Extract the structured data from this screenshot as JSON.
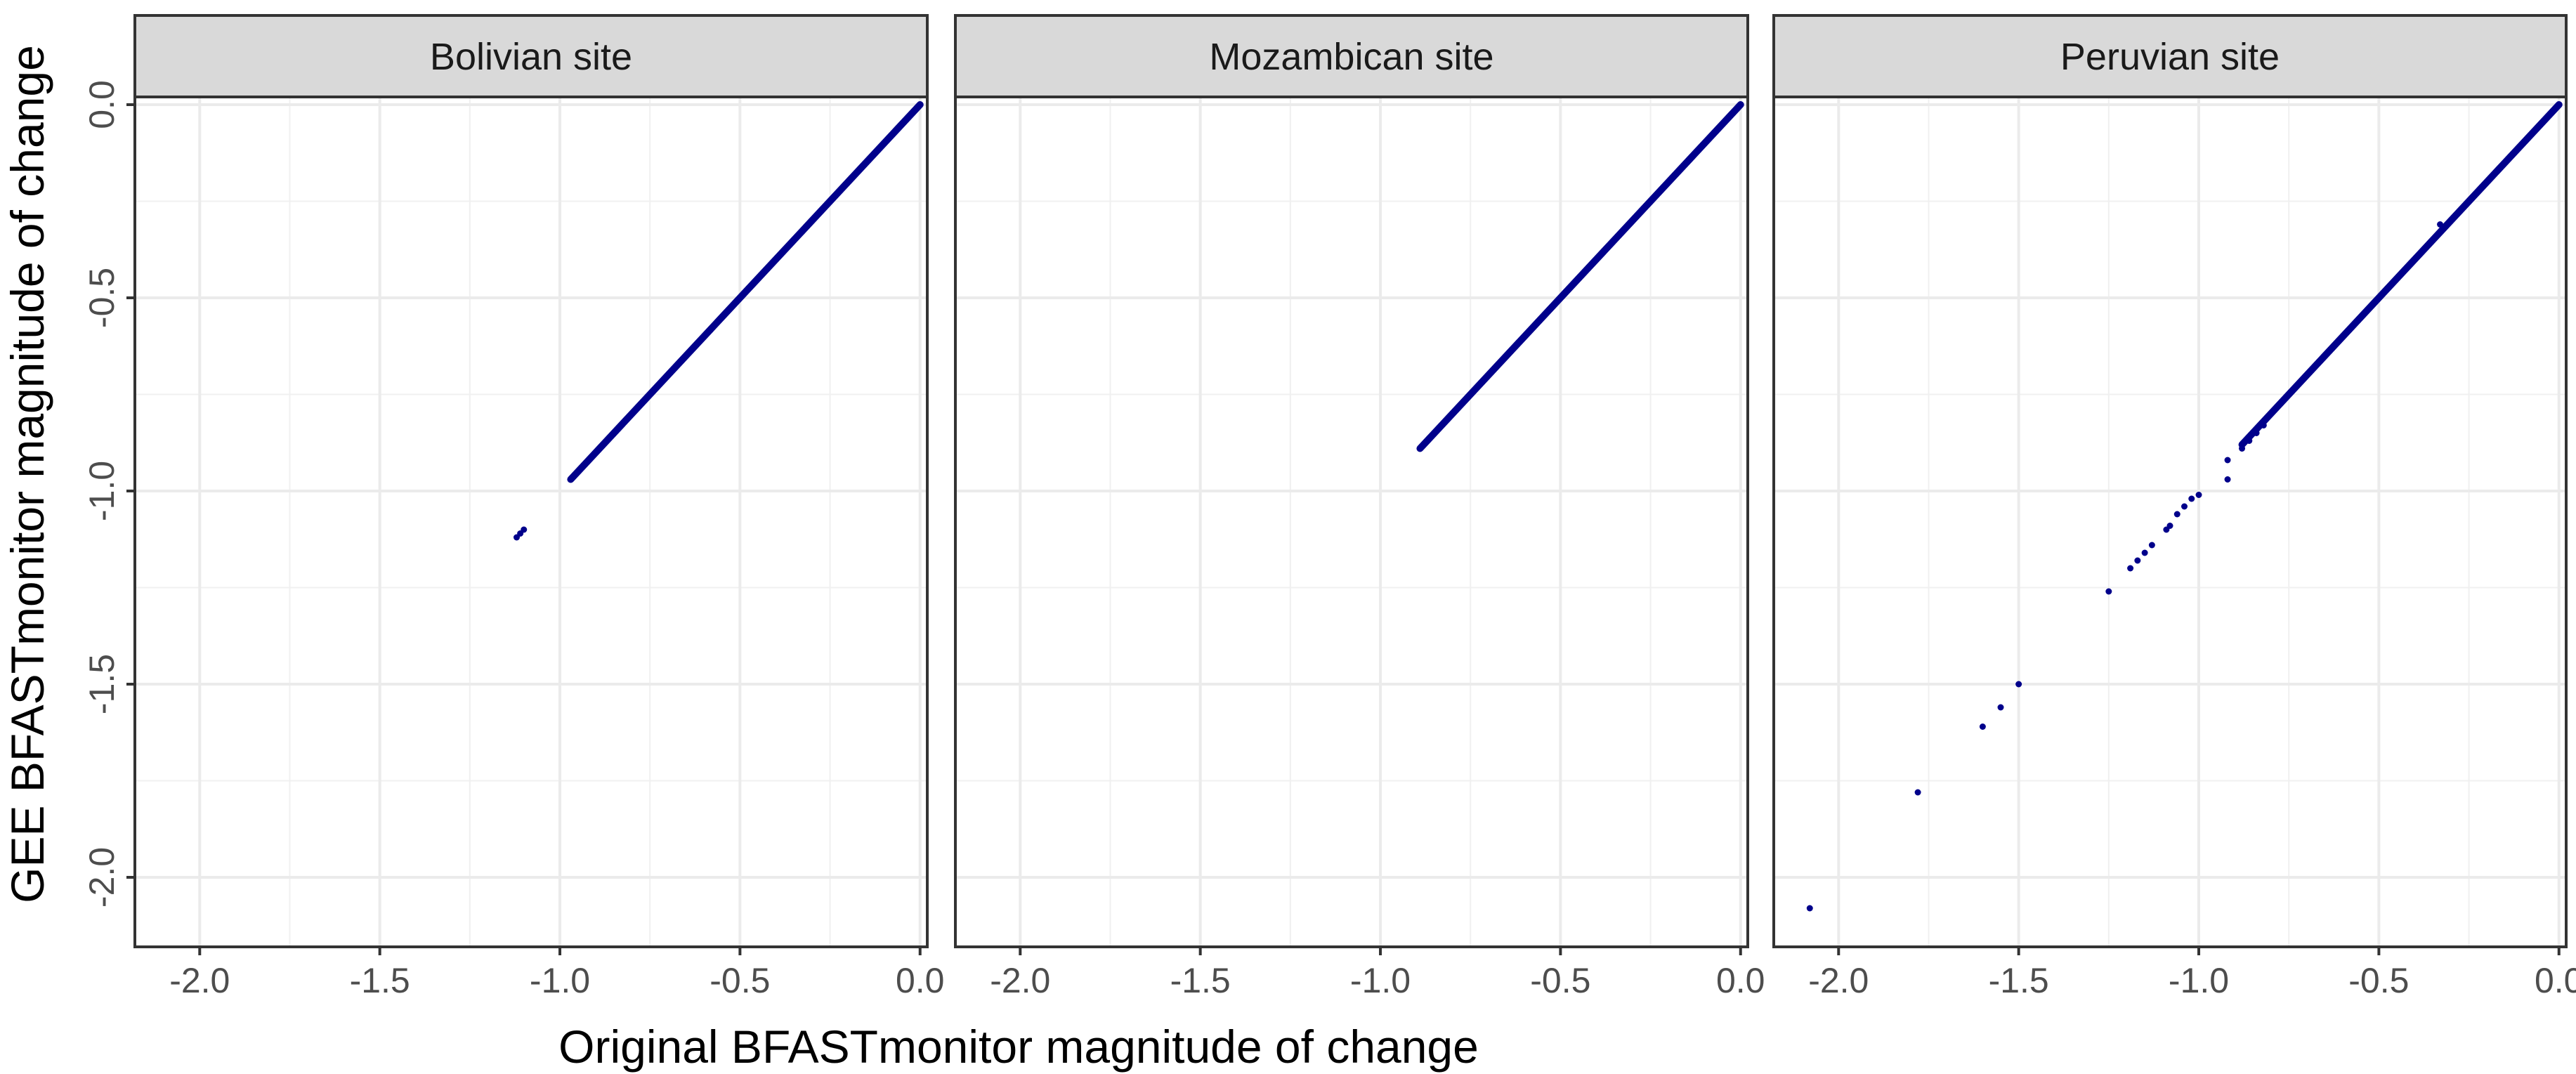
{
  "chart_data": {
    "type": "scatter",
    "layout": "faceted",
    "xlabel": "Original BFASTmonitor magnitude of change",
    "ylabel": "GEE BFASTmonitor magnitude of change",
    "xlim": [
      -2.18,
      0.02
    ],
    "ylim": [
      -2.18,
      0.02
    ],
    "x_ticks": [
      "-2.0",
      "-1.5",
      "-1.0",
      "-0.5",
      "0.0"
    ],
    "x_tick_values": [
      -2.0,
      -1.5,
      -1.0,
      -0.5,
      0.0
    ],
    "y_ticks": [
      "-2.0",
      "-1.5",
      "-1.0",
      "-0.5",
      "0.0"
    ],
    "y_tick_values": [
      -2.0,
      -1.5,
      -1.0,
      -0.5,
      0.0
    ],
    "grid": true,
    "point_color": "#00008b",
    "panel_strip_fill": "#d9d9d9",
    "panels": [
      {
        "title": "Bolivian site",
        "dense_line": {
          "x_min": -0.97,
          "x_max": 0.0
        },
        "points": [
          {
            "x": -1.12,
            "y": -1.12
          },
          {
            "x": -1.11,
            "y": -1.11
          },
          {
            "x": -1.1,
            "y": -1.1
          },
          {
            "x": -0.97,
            "y": -0.97
          },
          {
            "x": -0.96,
            "y": -0.96
          },
          {
            "x": -0.95,
            "y": -0.95
          },
          {
            "x": -0.94,
            "y": -0.94
          },
          {
            "x": -0.92,
            "y": -0.92
          }
        ]
      },
      {
        "title": "Mozambican site",
        "dense_line": {
          "x_min": -0.89,
          "x_max": 0.0
        },
        "points": [
          {
            "x": -0.89,
            "y": -0.89
          },
          {
            "x": -0.87,
            "y": -0.87
          },
          {
            "x": -0.85,
            "y": -0.85
          },
          {
            "x": -0.8,
            "y": -0.8
          }
        ]
      },
      {
        "title": "Peruvian site",
        "dense_line": {
          "x_min": -0.88,
          "x_max": 0.0
        },
        "points": [
          {
            "x": -2.08,
            "y": -2.08
          },
          {
            "x": -1.78,
            "y": -1.78
          },
          {
            "x": -1.6,
            "y": -1.61
          },
          {
            "x": -1.55,
            "y": -1.56
          },
          {
            "x": -1.5,
            "y": -1.5
          },
          {
            "x": -1.25,
            "y": -1.26
          },
          {
            "x": -1.19,
            "y": -1.2
          },
          {
            "x": -1.17,
            "y": -1.18
          },
          {
            "x": -1.15,
            "y": -1.16
          },
          {
            "x": -1.13,
            "y": -1.14
          },
          {
            "x": -1.09,
            "y": -1.1
          },
          {
            "x": -1.08,
            "y": -1.09
          },
          {
            "x": -1.06,
            "y": -1.06
          },
          {
            "x": -1.04,
            "y": -1.04
          },
          {
            "x": -1.02,
            "y": -1.02
          },
          {
            "x": -1.0,
            "y": -1.01
          },
          {
            "x": -0.92,
            "y": -0.92
          },
          {
            "x": -0.92,
            "y": -0.97
          },
          {
            "x": -0.88,
            "y": -0.89
          },
          {
            "x": -0.86,
            "y": -0.87
          },
          {
            "x": -0.84,
            "y": -0.85
          },
          {
            "x": -0.82,
            "y": -0.83
          },
          {
            "x": -0.8,
            "y": -0.8
          },
          {
            "x": -0.33,
            "y": -0.31
          },
          {
            "x": -0.45,
            "y": -0.45
          }
        ]
      }
    ]
  }
}
